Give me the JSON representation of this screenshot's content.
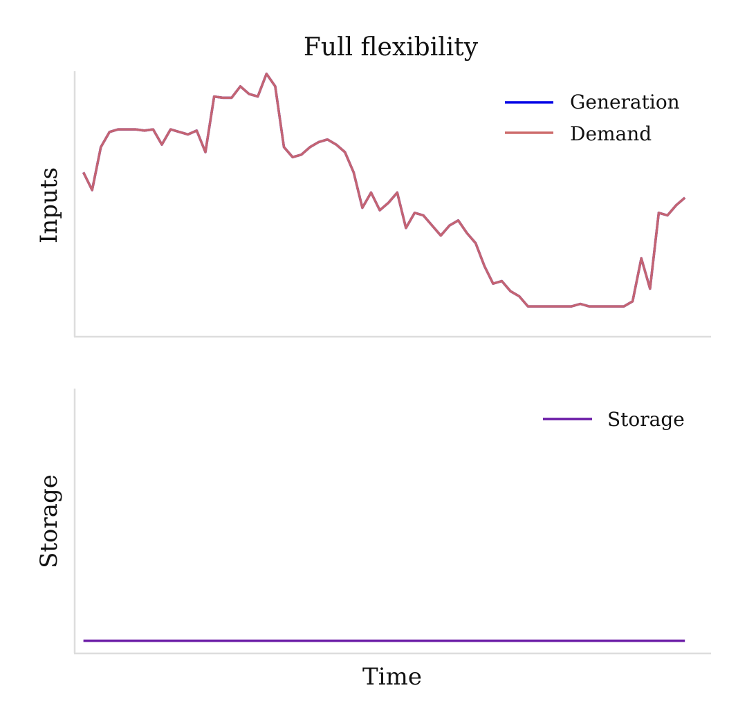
{
  "title": "Full flexibility",
  "xlabel": "Time",
  "colors": {
    "generation": "#0000e6",
    "demand": "#cd6b6b",
    "overlap": "#c46472",
    "storage": "#6a1aa6",
    "axis": "#dddddd"
  },
  "chart_data": [
    {
      "type": "line",
      "title": "Full flexibility",
      "ylabel": "Inputs",
      "ticks_shown": false,
      "grid": false,
      "legend_position": "top-right",
      "xlim": [
        -1,
        72
      ],
      "ylim": [
        -0.05,
        1.0
      ],
      "x": [
        0,
        1,
        2,
        3,
        4,
        5,
        6,
        7,
        8,
        9,
        10,
        11,
        12,
        13,
        14,
        15,
        16,
        17,
        18,
        19,
        20,
        21,
        22,
        23,
        24,
        25,
        26,
        27,
        28,
        29,
        30,
        31,
        32,
        33,
        34,
        35,
        36,
        37,
        38,
        39,
        40,
        41,
        42,
        43,
        44,
        45,
        46,
        47,
        48,
        49,
        50,
        51,
        52,
        53,
        54,
        55,
        56,
        57,
        58,
        59,
        60,
        61,
        62,
        63,
        64,
        65,
        66,
        67,
        68,
        69
      ],
      "series": [
        {
          "name": "Generation",
          "color": "#0000e6",
          "values": [
            0.6,
            0.53,
            0.7,
            0.76,
            0.77,
            0.77,
            0.77,
            0.765,
            0.77,
            0.71,
            0.77,
            0.76,
            0.75,
            0.765,
            0.68,
            0.9,
            0.895,
            0.895,
            0.94,
            0.91,
            0.9,
            0.99,
            0.94,
            0.7,
            0.66,
            0.67,
            0.7,
            0.72,
            0.73,
            0.71,
            0.68,
            0.6,
            0.46,
            0.52,
            0.45,
            0.48,
            0.52,
            0.38,
            0.44,
            0.43,
            0.39,
            0.35,
            0.39,
            0.41,
            0.36,
            0.32,
            0.23,
            0.16,
            0.17,
            0.13,
            0.11,
            0.07,
            0.07,
            0.07,
            0.07,
            0.07,
            0.07,
            0.08,
            0.07,
            0.07,
            0.07,
            0.07,
            0.07,
            0.09,
            0.26,
            0.14,
            0.44,
            0.43,
            0.47,
            0.5
          ]
        },
        {
          "name": "Demand",
          "color": "#cd6b6b",
          "values": [
            0.6,
            0.53,
            0.7,
            0.76,
            0.77,
            0.77,
            0.77,
            0.765,
            0.77,
            0.71,
            0.77,
            0.76,
            0.75,
            0.765,
            0.68,
            0.9,
            0.895,
            0.895,
            0.94,
            0.91,
            0.9,
            0.99,
            0.94,
            0.7,
            0.66,
            0.67,
            0.7,
            0.72,
            0.73,
            0.71,
            0.68,
            0.6,
            0.46,
            0.52,
            0.45,
            0.48,
            0.52,
            0.38,
            0.44,
            0.43,
            0.39,
            0.35,
            0.39,
            0.41,
            0.36,
            0.32,
            0.23,
            0.16,
            0.17,
            0.13,
            0.11,
            0.07,
            0.07,
            0.07,
            0.07,
            0.07,
            0.07,
            0.08,
            0.07,
            0.07,
            0.07,
            0.07,
            0.07,
            0.09,
            0.26,
            0.14,
            0.44,
            0.43,
            0.47,
            0.5
          ]
        }
      ]
    },
    {
      "type": "line",
      "ylabel": "Storage",
      "xlabel": "Time",
      "ticks_shown": false,
      "grid": false,
      "legend_position": "top-right",
      "xlim": [
        -1,
        72
      ],
      "ylim": [
        -0.05,
        1.0
      ],
      "x": [
        0,
        69
      ],
      "series": [
        {
          "name": "Storage",
          "color": "#6a1aa6",
          "values": [
            0,
            0
          ]
        }
      ]
    }
  ]
}
